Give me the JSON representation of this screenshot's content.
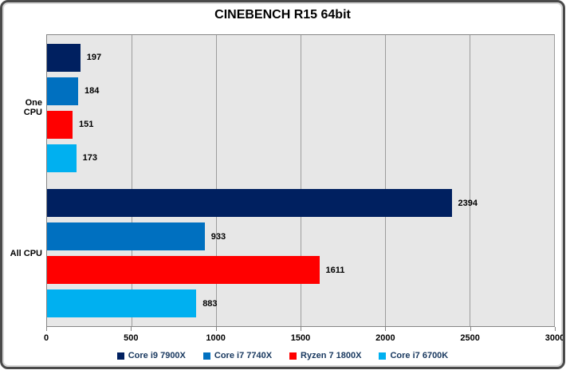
{
  "chart_data": {
    "type": "bar",
    "orientation": "horizontal",
    "title": "CINEBENCH R15 64bit",
    "categories": [
      "One CPU",
      "All CPU"
    ],
    "series": [
      {
        "name": "Core i9 7900X",
        "color": "#002060",
        "values": [
          197,
          2394
        ]
      },
      {
        "name": "Core i7 7740X",
        "color": "#0070c0",
        "values": [
          184,
          933
        ]
      },
      {
        "name": "Ryzen 7 1800X",
        "color": "#ff0000",
        "values": [
          151,
          1611
        ]
      },
      {
        "name": "Core i7 6700K",
        "color": "#00b0f0",
        "values": [
          173,
          883
        ]
      }
    ],
    "xlim": [
      0,
      3000
    ],
    "x_ticks": [
      0,
      500,
      1000,
      1500,
      2000,
      2500,
      3000
    ],
    "grid": true,
    "value_labels": true,
    "legend_position": "bottom",
    "plot_background": "#e7e7e7",
    "legend_text_color": "#17375e"
  }
}
